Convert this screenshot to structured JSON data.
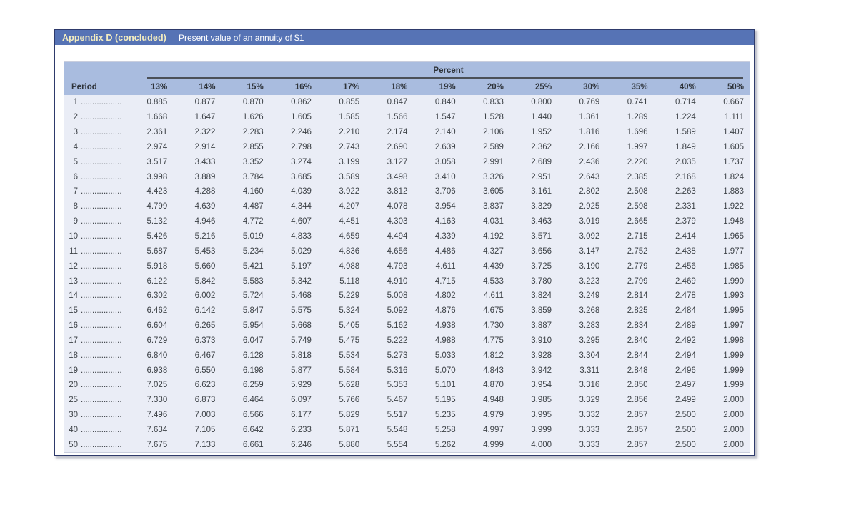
{
  "header": {
    "title": "Appendix D (concluded)",
    "subtitle": "Present value of an annuity of $1"
  },
  "table": {
    "group_header": "Percent",
    "period_label": "Period",
    "columns": [
      "13%",
      "14%",
      "15%",
      "16%",
      "17%",
      "18%",
      "19%",
      "20%",
      "25%",
      "30%",
      "35%",
      "40%",
      "50%"
    ],
    "rows": [
      {
        "period": "1",
        "values": [
          "0.885",
          "0.877",
          "0.870",
          "0.862",
          "0.855",
          "0.847",
          "0.840",
          "0.833",
          "0.800",
          "0.769",
          "0.741",
          "0.714",
          "0.667"
        ]
      },
      {
        "period": "2",
        "values": [
          "1.668",
          "1.647",
          "1.626",
          "1.605",
          "1.585",
          "1.566",
          "1.547",
          "1.528",
          "1.440",
          "1.361",
          "1.289",
          "1.224",
          "1.111"
        ]
      },
      {
        "period": "3",
        "values": [
          "2.361",
          "2.322",
          "2.283",
          "2.246",
          "2.210",
          "2.174",
          "2.140",
          "2.106",
          "1.952",
          "1.816",
          "1.696",
          "1.589",
          "1.407"
        ]
      },
      {
        "period": "4",
        "values": [
          "2.974",
          "2.914",
          "2.855",
          "2.798",
          "2.743",
          "2.690",
          "2.639",
          "2.589",
          "2.362",
          "2.166",
          "1.997",
          "1.849",
          "1.605"
        ]
      },
      {
        "period": "5",
        "values": [
          "3.517",
          "3.433",
          "3.352",
          "3.274",
          "3.199",
          "3.127",
          "3.058",
          "2.991",
          "2.689",
          "2.436",
          "2.220",
          "2.035",
          "1.737"
        ]
      },
      {
        "period": "6",
        "values": [
          "3.998",
          "3.889",
          "3.784",
          "3.685",
          "3.589",
          "3.498",
          "3.410",
          "3.326",
          "2.951",
          "2.643",
          "2.385",
          "2.168",
          "1.824"
        ]
      },
      {
        "period": "7",
        "values": [
          "4.423",
          "4.288",
          "4.160",
          "4.039",
          "3.922",
          "3.812",
          "3.706",
          "3.605",
          "3.161",
          "2.802",
          "2.508",
          "2.263",
          "1.883"
        ]
      },
      {
        "period": "8",
        "values": [
          "4.799",
          "4.639",
          "4.487",
          "4.344",
          "4.207",
          "4.078",
          "3.954",
          "3.837",
          "3.329",
          "2.925",
          "2.598",
          "2.331",
          "1.922"
        ]
      },
      {
        "period": "9",
        "values": [
          "5.132",
          "4.946",
          "4.772",
          "4.607",
          "4.451",
          "4.303",
          "4.163",
          "4.031",
          "3.463",
          "3.019",
          "2.665",
          "2.379",
          "1.948"
        ]
      },
      {
        "period": "10",
        "values": [
          "5.426",
          "5.216",
          "5.019",
          "4.833",
          "4.659",
          "4.494",
          "4.339",
          "4.192",
          "3.571",
          "3.092",
          "2.715",
          "2.414",
          "1.965"
        ]
      },
      {
        "period": "11",
        "values": [
          "5.687",
          "5.453",
          "5.234",
          "5.029",
          "4.836",
          "4.656",
          "4.486",
          "4.327",
          "3.656",
          "3.147",
          "2.752",
          "2.438",
          "1.977"
        ]
      },
      {
        "period": "12",
        "values": [
          "5.918",
          "5.660",
          "5.421",
          "5.197",
          "4.988",
          "4.793",
          "4.611",
          "4.439",
          "3.725",
          "3.190",
          "2.779",
          "2.456",
          "1.985"
        ]
      },
      {
        "period": "13",
        "values": [
          "6.122",
          "5.842",
          "5.583",
          "5.342",
          "5.118",
          "4.910",
          "4.715",
          "4.533",
          "3.780",
          "3.223",
          "2.799",
          "2.469",
          "1.990"
        ]
      },
      {
        "period": "14",
        "values": [
          "6.302",
          "6.002",
          "5.724",
          "5.468",
          "5.229",
          "5.008",
          "4.802",
          "4.611",
          "3.824",
          "3.249",
          "2.814",
          "2.478",
          "1.993"
        ]
      },
      {
        "period": "15",
        "values": [
          "6.462",
          "6.142",
          "5.847",
          "5.575",
          "5.324",
          "5.092",
          "4.876",
          "4.675",
          "3.859",
          "3.268",
          "2.825",
          "2.484",
          "1.995"
        ]
      },
      {
        "period": "16",
        "values": [
          "6.604",
          "6.265",
          "5.954",
          "5.668",
          "5.405",
          "5.162",
          "4.938",
          "4.730",
          "3.887",
          "3.283",
          "2.834",
          "2.489",
          "1.997"
        ]
      },
      {
        "period": "17",
        "values": [
          "6.729",
          "6.373",
          "6.047",
          "5.749",
          "5.475",
          "5.222",
          "4.988",
          "4.775",
          "3.910",
          "3.295",
          "2.840",
          "2.492",
          "1.998"
        ]
      },
      {
        "period": "18",
        "values": [
          "6.840",
          "6.467",
          "6.128",
          "5.818",
          "5.534",
          "5.273",
          "5.033",
          "4.812",
          "3.928",
          "3.304",
          "2.844",
          "2.494",
          "1.999"
        ]
      },
      {
        "period": "19",
        "values": [
          "6.938",
          "6.550",
          "6.198",
          "5.877",
          "5.584",
          "5.316",
          "5.070",
          "4.843",
          "3.942",
          "3.311",
          "2.848",
          "2.496",
          "1.999"
        ]
      },
      {
        "period": "20",
        "values": [
          "7.025",
          "6.623",
          "6.259",
          "5.929",
          "5.628",
          "5.353",
          "5.101",
          "4.870",
          "3.954",
          "3.316",
          "2.850",
          "2.497",
          "1.999"
        ]
      },
      {
        "period": "25",
        "values": [
          "7.330",
          "6.873",
          "6.464",
          "6.097",
          "5.766",
          "5.467",
          "5.195",
          "4.948",
          "3.985",
          "3.329",
          "2.856",
          "2.499",
          "2.000"
        ]
      },
      {
        "period": "30",
        "values": [
          "7.496",
          "7.003",
          "6.566",
          "6.177",
          "5.829",
          "5.517",
          "5.235",
          "4.979",
          "3.995",
          "3.332",
          "2.857",
          "2.500",
          "2.000"
        ]
      },
      {
        "period": "40",
        "values": [
          "7.634",
          "7.105",
          "6.642",
          "6.233",
          "5.871",
          "5.548",
          "5.258",
          "4.997",
          "3.999",
          "3.333",
          "2.857",
          "2.500",
          "2.000"
        ]
      },
      {
        "period": "50",
        "values": [
          "7.675",
          "7.133",
          "6.661",
          "6.246",
          "5.880",
          "5.554",
          "5.262",
          "4.999",
          "4.000",
          "3.333",
          "2.857",
          "2.500",
          "2.000"
        ]
      }
    ]
  },
  "colors": {
    "titlebar_bg": "#5673b5",
    "title_text": "#f3edc0",
    "subtitle_text": "#ffffff",
    "table_header_bg": "#a9bcdf",
    "table_body_bg": "#eaedf6",
    "text": "#3e4348",
    "panel_border": "#2e3a6b"
  }
}
